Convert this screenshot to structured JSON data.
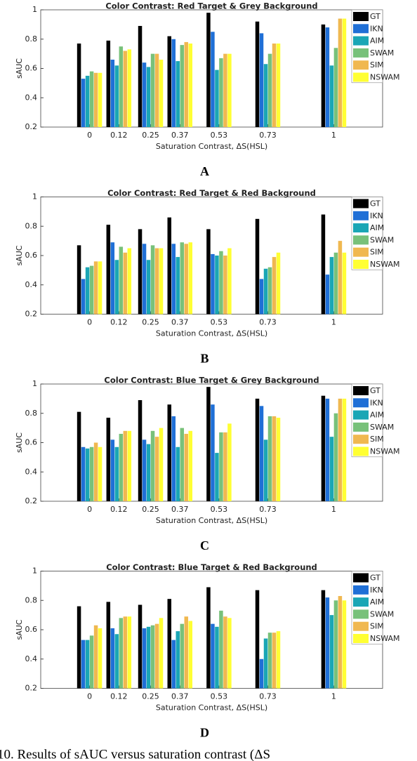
{
  "chart_data": [
    {
      "type": "bar",
      "title": "Color Contrast: Red Target & Grey Background",
      "panel": "A",
      "x_label": "Saturation Contrast, ΔS(HSL)",
      "y_label": "sAUC",
      "x": [
        0,
        0.12,
        0.25,
        0.37,
        0.53,
        0.73,
        1
      ],
      "xlim": [
        -0.2,
        1.2
      ],
      "xticks": [
        0,
        0.12,
        0.25,
        0.37,
        0.53,
        0.73,
        1
      ],
      "ylim": [
        0.2,
        1
      ],
      "yticks": [
        0.2,
        0.4,
        0.6,
        0.8,
        1
      ],
      "legend": "northeast",
      "series": [
        {
          "name": "GT",
          "color": "#000000",
          "values": [
            0.77,
            0.79,
            0.89,
            0.82,
            0.98,
            0.92,
            0.9
          ]
        },
        {
          "name": "IKN",
          "color": "#1f6fd6",
          "values": [
            0.53,
            0.66,
            0.64,
            0.8,
            0.85,
            0.84,
            0.88
          ]
        },
        {
          "name": "AIM",
          "color": "#1aa6b5",
          "values": [
            0.55,
            0.62,
            0.61,
            0.65,
            0.59,
            0.63,
            0.62
          ]
        },
        {
          "name": "SWAM",
          "color": "#78c17a",
          "values": [
            0.58,
            0.75,
            0.7,
            0.76,
            0.67,
            0.7,
            0.74
          ]
        },
        {
          "name": "SIM",
          "color": "#f0b850",
          "values": [
            0.57,
            0.72,
            0.7,
            0.78,
            0.7,
            0.77,
            0.94
          ]
        },
        {
          "name": "NSWAM",
          "color": "#ffff33",
          "values": [
            0.57,
            0.73,
            0.66,
            0.77,
            0.7,
            0.77,
            0.94
          ]
        }
      ]
    },
    {
      "type": "bar",
      "title": "Color Contrast: Red Target & Red Background",
      "panel": "B",
      "x_label": "Saturation Contrast, ΔS(HSL)",
      "y_label": "sAUC",
      "x": [
        0,
        0.12,
        0.25,
        0.37,
        0.53,
        0.73,
        1
      ],
      "xlim": [
        -0.2,
        1.2
      ],
      "xticks": [
        0,
        0.12,
        0.25,
        0.37,
        0.53,
        0.73,
        1
      ],
      "ylim": [
        0.2,
        1
      ],
      "yticks": [
        0.2,
        0.4,
        0.6,
        0.8,
        1
      ],
      "legend": "northeast",
      "series": [
        {
          "name": "GT",
          "color": "#000000",
          "values": [
            0.67,
            0.81,
            0.78,
            0.86,
            0.78,
            0.85,
            0.88
          ]
        },
        {
          "name": "IKN",
          "color": "#1f6fd6",
          "values": [
            0.44,
            0.69,
            0.68,
            0.68,
            0.61,
            0.44,
            0.47
          ]
        },
        {
          "name": "AIM",
          "color": "#1aa6b5",
          "values": [
            0.52,
            0.57,
            0.57,
            0.59,
            0.6,
            0.51,
            0.59
          ]
        },
        {
          "name": "SWAM",
          "color": "#78c17a",
          "values": [
            0.53,
            0.66,
            0.67,
            0.69,
            0.63,
            0.52,
            0.62
          ]
        },
        {
          "name": "SIM",
          "color": "#f0b850",
          "values": [
            0.56,
            0.62,
            0.65,
            0.68,
            0.6,
            0.59,
            0.7
          ]
        },
        {
          "name": "NSWAM",
          "color": "#ffff33",
          "values": [
            0.56,
            0.65,
            0.65,
            0.69,
            0.65,
            0.62,
            0.62
          ]
        }
      ]
    },
    {
      "type": "bar",
      "title": "Color Contrast: Blue Target & Grey Background",
      "panel": "C",
      "x_label": "Saturation Contrast, ΔS(HSL)",
      "y_label": "sAUC",
      "x": [
        0,
        0.12,
        0.25,
        0.37,
        0.53,
        0.73,
        1
      ],
      "xlim": [
        -0.2,
        1.2
      ],
      "xticks": [
        0,
        0.12,
        0.25,
        0.37,
        0.53,
        0.73,
        1
      ],
      "ylim": [
        0.2,
        1
      ],
      "yticks": [
        0.2,
        0.4,
        0.6,
        0.8,
        1
      ],
      "legend": "northeast",
      "series": [
        {
          "name": "GT",
          "color": "#000000",
          "values": [
            0.81,
            0.77,
            0.89,
            0.86,
            0.98,
            0.9,
            0.92
          ]
        },
        {
          "name": "IKN",
          "color": "#1f6fd6",
          "values": [
            0.57,
            0.62,
            0.62,
            0.78,
            0.86,
            0.85,
            0.9
          ]
        },
        {
          "name": "AIM",
          "color": "#1aa6b5",
          "values": [
            0.56,
            0.57,
            0.59,
            0.57,
            0.53,
            0.62,
            0.64
          ]
        },
        {
          "name": "SWAM",
          "color": "#78c17a",
          "values": [
            0.57,
            0.66,
            0.68,
            0.7,
            0.67,
            0.78,
            0.8
          ]
        },
        {
          "name": "SIM",
          "color": "#f0b850",
          "values": [
            0.6,
            0.68,
            0.64,
            0.66,
            0.67,
            0.78,
            0.9
          ]
        },
        {
          "name": "NSWAM",
          "color": "#ffff33",
          "values": [
            0.57,
            0.68,
            0.7,
            0.68,
            0.73,
            0.77,
            0.9
          ]
        }
      ]
    },
    {
      "type": "bar",
      "title": "Color Contrast: Blue Target & Red Background",
      "panel": "D",
      "x_label": "Saturation Contrast, ΔS(HSL)",
      "y_label": "sAUC",
      "x": [
        0,
        0.12,
        0.25,
        0.37,
        0.53,
        0.73,
        1
      ],
      "xlim": [
        -0.2,
        1.2
      ],
      "xticks": [
        0,
        0.12,
        0.25,
        0.37,
        0.53,
        0.73,
        1
      ],
      "ylim": [
        0.2,
        1
      ],
      "yticks": [
        0.2,
        0.4,
        0.6,
        0.8,
        1
      ],
      "legend": "northeast",
      "series": [
        {
          "name": "GT",
          "color": "#000000",
          "values": [
            0.76,
            0.79,
            0.77,
            0.81,
            0.89,
            0.87,
            0.87
          ]
        },
        {
          "name": "IKN",
          "color": "#1f6fd6",
          "values": [
            0.53,
            0.61,
            0.61,
            0.53,
            0.64,
            0.4,
            0.82
          ]
        },
        {
          "name": "AIM",
          "color": "#1aa6b5",
          "values": [
            0.53,
            0.57,
            0.62,
            0.59,
            0.62,
            0.54,
            0.7
          ]
        },
        {
          "name": "SWAM",
          "color": "#78c17a",
          "values": [
            0.56,
            0.68,
            0.63,
            0.64,
            0.73,
            0.58,
            0.8
          ]
        },
        {
          "name": "SIM",
          "color": "#f0b850",
          "values": [
            0.63,
            0.69,
            0.64,
            0.69,
            0.69,
            0.58,
            0.83
          ]
        },
        {
          "name": "NSWAM",
          "color": "#ffff33",
          "values": [
            0.61,
            0.69,
            0.68,
            0.66,
            0.68,
            0.59,
            0.8
          ]
        }
      ]
    }
  ],
  "caption": "10. Results of sAUC versus saturation contrast (ΔS"
}
